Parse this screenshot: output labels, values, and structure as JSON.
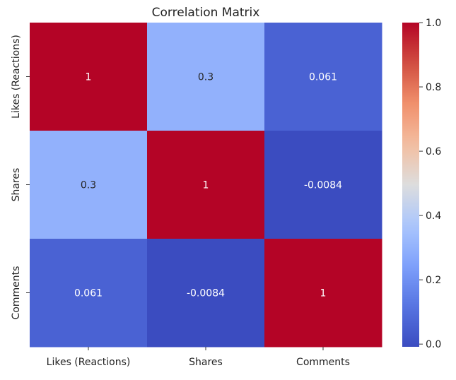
{
  "chart_data": {
    "type": "heatmap",
    "title": "Correlation Matrix",
    "xlabel": "",
    "ylabel": "",
    "x_categories": [
      "Likes (Reactions)",
      "Shares",
      "Comments"
    ],
    "y_categories": [
      "Likes (Reactions)",
      "Shares",
      "Comments"
    ],
    "values": [
      [
        1,
        0.3,
        0.061
      ],
      [
        0.3,
        1,
        -0.0084
      ],
      [
        0.061,
        -0.0084,
        1
      ]
    ],
    "cell_labels": [
      [
        "1",
        "0.3",
        "0.061"
      ],
      [
        "0.3",
        "1",
        "-0.0084"
      ],
      [
        "0.061",
        "-0.0084",
        "1"
      ]
    ],
    "colormap": "coolwarm",
    "colorbar": {
      "vmin": -0.0084,
      "vmax": 1,
      "ticks": [
        0.0,
        0.2,
        0.4,
        0.6,
        0.8,
        1.0
      ],
      "tick_labels": [
        "0.0",
        "0.2",
        "0.4",
        "0.6",
        "0.8",
        "1.0"
      ]
    },
    "grid": false
  }
}
